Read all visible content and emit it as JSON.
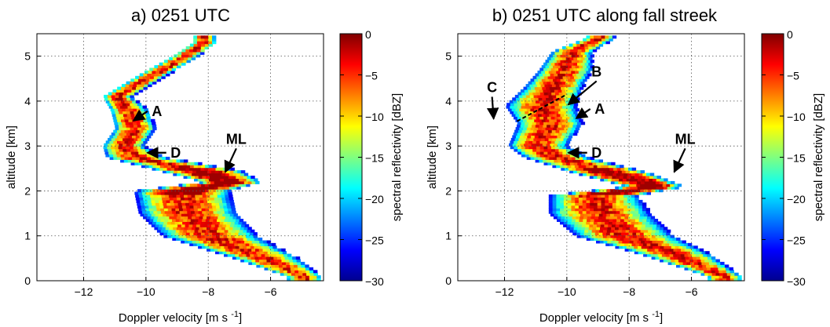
{
  "chart_data": [
    {
      "type": "heatmap",
      "title": "a) 0251 UTC",
      "xlabel": "Doppler velocity [m s",
      "xlabel_sup": "-1",
      "xlabel_end": "]",
      "ylabel": "altitude [km]",
      "xlim": [
        -13.5,
        -4.3
      ],
      "ylim": [
        0,
        5.5
      ],
      "xticks": [
        -12,
        -10,
        -8,
        -6
      ],
      "xtick_labels": [
        "−12",
        "−10",
        "−8",
        "−6"
      ],
      "yticks": [
        0,
        1,
        2,
        3,
        4,
        5
      ],
      "ytick_labels": [
        "0",
        "1",
        "2",
        "3",
        "4",
        "5"
      ],
      "grid": true,
      "colorbar": {
        "label": "spectral reflectivity [dBZ]",
        "range": [
          -30,
          0
        ],
        "ticks": [
          0,
          -5,
          -10,
          -15,
          -20,
          -25,
          -30
        ],
        "tick_labels": [
          "0",
          "−5",
          "−10",
          "−15",
          "−20",
          "−25",
          "−30"
        ]
      },
      "spectrum_ridge": [
        {
          "alt": 0.1,
          "v": -5.0,
          "width": 1.2
        },
        {
          "alt": 0.5,
          "v": -6.2,
          "width": 2.2
        },
        {
          "alt": 1.0,
          "v": -8.0,
          "width": 3.2
        },
        {
          "alt": 1.5,
          "v": -8.7,
          "width": 3.3
        },
        {
          "alt": 2.0,
          "v": -8.9,
          "width": 3.2
        },
        {
          "alt": 2.2,
          "v": -7.3,
          "width": 2.0
        },
        {
          "alt": 2.45,
          "v": -8.3,
          "width": 2.8
        },
        {
          "alt": 2.75,
          "v": -10.4,
          "width": 2.0
        },
        {
          "alt": 3.0,
          "v": -10.8,
          "width": 1.4
        },
        {
          "alt": 3.4,
          "v": -10.4,
          "width": 1.4
        },
        {
          "alt": 3.8,
          "v": -10.6,
          "width": 1.3
        },
        {
          "alt": 4.1,
          "v": -11.0,
          "width": 1.0
        },
        {
          "alt": 4.6,
          "v": -9.8,
          "width": 1.0
        },
        {
          "alt": 5.0,
          "v": -8.8,
          "width": 0.9
        },
        {
          "alt": 5.3,
          "v": -8.2,
          "width": 0.8
        }
      ],
      "annotations": [
        {
          "text": "A",
          "alt": 3.95,
          "v": -10.2
        },
        {
          "text": "D",
          "alt": 2.85,
          "v": -9.6
        },
        {
          "text": "ML",
          "alt": 3.05,
          "v": -7.1
        }
      ]
    },
    {
      "type": "heatmap",
      "title": "b) 0251 UTC along fall streek",
      "xlabel": "Doppler velocity [m s",
      "xlabel_sup": "-1",
      "xlabel_end": "]",
      "ylabel": "altitude [km]",
      "xlim": [
        -13.5,
        -4.3
      ],
      "ylim": [
        0,
        5.5
      ],
      "xticks": [
        -12,
        -10,
        -8,
        -6
      ],
      "xtick_labels": [
        "−12",
        "−10",
        "−8",
        "−6"
      ],
      "yticks": [
        0,
        1,
        2,
        3,
        4,
        5
      ],
      "ytick_labels": [
        "0",
        "1",
        "2",
        "3",
        "4",
        "5"
      ],
      "grid": true,
      "colorbar": {
        "label": "spectral reflectivity [dBZ]",
        "range": [
          -30,
          0
        ],
        "ticks": [
          0,
          -5,
          -10,
          -15,
          -20,
          -25,
          -30
        ],
        "tick_labels": [
          "0",
          "−5",
          "−10",
          "−15",
          "−20",
          "−25",
          "−30"
        ]
      },
      "spectrum_ridge": [
        {
          "alt": 0.1,
          "v": -5.0,
          "width": 1.2
        },
        {
          "alt": 0.6,
          "v": -6.6,
          "width": 2.4
        },
        {
          "alt": 1.0,
          "v": -8.2,
          "width": 3.3
        },
        {
          "alt": 1.5,
          "v": -9.0,
          "width": 3.4
        },
        {
          "alt": 1.9,
          "v": -9.2,
          "width": 3.0
        },
        {
          "alt": 2.1,
          "v": -7.2,
          "width": 2.0
        },
        {
          "alt": 2.4,
          "v": -8.6,
          "width": 2.6
        },
        {
          "alt": 2.75,
          "v": -10.4,
          "width": 2.2
        },
        {
          "alt": 3.0,
          "v": -11.0,
          "width": 2.0
        },
        {
          "alt": 3.5,
          "v": -10.6,
          "width": 2.2
        },
        {
          "alt": 3.9,
          "v": -10.9,
          "width": 2.4
        },
        {
          "alt": 4.3,
          "v": -10.5,
          "width": 2.0
        },
        {
          "alt": 4.7,
          "v": -10.1,
          "width": 1.8
        },
        {
          "alt": 5.1,
          "v": -9.9,
          "width": 1.4
        },
        {
          "alt": 5.4,
          "v": -9.0,
          "width": 1.0
        }
      ],
      "annotations": [
        {
          "text": "B",
          "alt": 4.55,
          "v": -9.5
        },
        {
          "text": "C",
          "alt": 4.2,
          "v": -12.4
        },
        {
          "text": "A",
          "alt": 4.0,
          "v": -9.5
        },
        {
          "text": "D",
          "alt": 2.85,
          "v": -9.6
        },
        {
          "text": "ML",
          "alt": 3.05,
          "v": -6.2
        }
      ]
    }
  ]
}
